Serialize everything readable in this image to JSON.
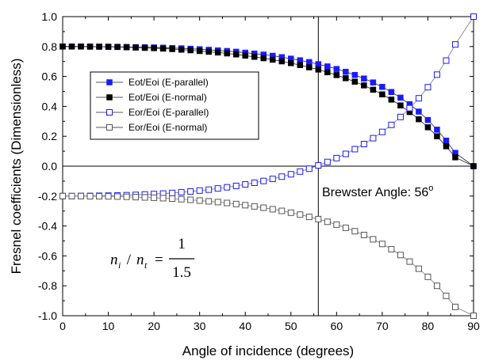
{
  "chart_data": {
    "type": "scatter",
    "title": "",
    "xlabel": "Angle of incidence (degrees)",
    "ylabel": "Fresnel coefficients (Dimensionless)",
    "xlim": [
      0,
      90
    ],
    "ylim": [
      -1.0,
      1.0
    ],
    "xticks": [
      "0",
      "10",
      "20",
      "30",
      "40",
      "50",
      "60",
      "70",
      "80",
      "90"
    ],
    "yticks": [
      "1.0",
      "0.8",
      "0.6",
      "0.4",
      "0.2",
      "0.0",
      "-0.2",
      "-0.4",
      "-0.6",
      "-0.8",
      "-1.0"
    ],
    "grid": false,
    "legend_position": "upper-left",
    "x": [
      0,
      2,
      4,
      6,
      8,
      10,
      12,
      14,
      16,
      18,
      20,
      22,
      24,
      26,
      28,
      30,
      32,
      34,
      36,
      38,
      40,
      42,
      44,
      46,
      48,
      50,
      52,
      54,
      56,
      58,
      60,
      62,
      64,
      66,
      68,
      70,
      72,
      74,
      76,
      78,
      80,
      82,
      84,
      86,
      88,
      90
    ],
    "series": [
      {
        "name": "Eot/Eoi (E-parallel)",
        "color": "#1a1aff",
        "marker": "filled-square",
        "values": [
          0.8,
          0.8,
          0.8,
          0.8,
          0.799,
          0.799,
          0.798,
          0.797,
          0.796,
          0.795,
          0.794,
          0.792,
          0.79,
          0.788,
          0.785,
          0.782,
          0.778,
          0.774,
          0.77,
          0.765,
          0.759,
          0.753,
          0.746,
          0.738,
          0.729,
          0.719,
          0.708,
          0.696,
          0.682,
          0.667,
          0.65,
          0.631,
          0.61,
          0.586,
          0.56,
          0.53,
          0.496,
          0.458,
          0.414,
          0.365,
          0.309,
          0.244,
          0.171,
          0.089,
          null,
          0.0
        ]
      },
      {
        "name": "Eot/Eoi (E-normal)",
        "color": "#000000",
        "marker": "filled-square",
        "values": [
          0.8,
          0.8,
          0.8,
          0.799,
          0.799,
          0.798,
          0.797,
          0.795,
          0.793,
          0.791,
          0.789,
          0.786,
          0.783,
          0.779,
          0.775,
          0.77,
          0.765,
          0.76,
          0.754,
          0.747,
          0.739,
          0.731,
          0.722,
          0.712,
          0.701,
          0.689,
          0.676,
          0.661,
          0.646,
          0.628,
          0.609,
          0.588,
          0.565,
          0.54,
          0.511,
          0.48,
          0.445,
          0.406,
          0.362,
          0.314,
          0.26,
          0.2,
          0.133,
          0.059,
          null,
          0.0
        ]
      },
      {
        "name": "Eor/Eoi (E-parallel)",
        "color": "#1a1aff",
        "marker": "open-square",
        "values": [
          -0.2,
          -0.2,
          -0.199,
          -0.199,
          -0.198,
          -0.197,
          -0.196,
          -0.194,
          -0.192,
          -0.189,
          -0.186,
          -0.183,
          -0.179,
          -0.174,
          -0.169,
          -0.163,
          -0.157,
          -0.149,
          -0.141,
          -0.132,
          -0.122,
          -0.111,
          -0.099,
          -0.085,
          -0.07,
          -0.054,
          -0.036,
          -0.017,
          0.005,
          0.028,
          0.054,
          0.082,
          0.114,
          0.148,
          0.187,
          0.229,
          0.276,
          0.329,
          0.388,
          0.454,
          0.528,
          0.612,
          0.706,
          0.814,
          null,
          1.0
        ]
      },
      {
        "name": "Eor/Eoi (E-normal)",
        "color": "#555555",
        "marker": "open-square",
        "values": [
          -0.2,
          -0.2,
          -0.2,
          -0.201,
          -0.201,
          -0.202,
          -0.203,
          -0.205,
          -0.207,
          -0.209,
          -0.211,
          -0.214,
          -0.217,
          -0.221,
          -0.225,
          -0.23,
          -0.235,
          -0.24,
          -0.246,
          -0.253,
          -0.261,
          -0.269,
          -0.278,
          -0.288,
          -0.299,
          -0.311,
          -0.324,
          -0.339,
          -0.354,
          -0.372,
          -0.391,
          -0.412,
          -0.435,
          -0.46,
          -0.489,
          -0.52,
          -0.555,
          -0.594,
          -0.638,
          -0.686,
          -0.74,
          -0.8,
          -0.867,
          -0.941,
          null,
          -1.0
        ]
      }
    ],
    "vertical_line_x": 56,
    "annotation_text": "Brewster Angle: 56",
    "annotation_degree": "o",
    "annotation_x": 56,
    "annotation_y": -0.17,
    "formula": {
      "lhs_n1": "n",
      "lhs_sub1": "i",
      "lhs_slash": " / ",
      "lhs_n2": "n",
      "lhs_sub2": "t",
      "equals": "=",
      "numerator": "1",
      "denominator": "1.5"
    },
    "formula_anchor": [
      8.5,
      -0.67
    ]
  }
}
